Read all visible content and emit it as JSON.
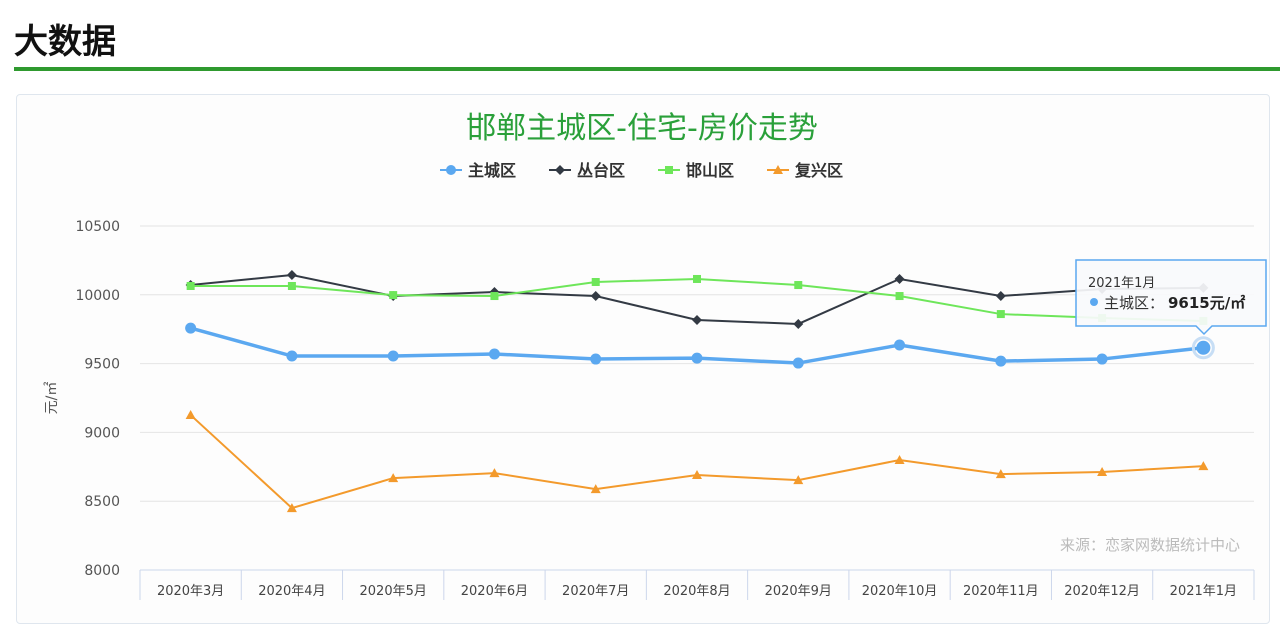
{
  "header": {
    "title": "大数据"
  },
  "source": "来源：恋家网数据统计中心",
  "tooltip": {
    "title": "2021年1月",
    "series": "主城区",
    "value": "9615元/㎡"
  },
  "chart_data": {
    "type": "line",
    "title": "邯郸主城区-住宅-房价走势",
    "ylabel": "元/㎡",
    "xlabel": "",
    "ylim": [
      8000,
      10500
    ],
    "yticks": [
      8000,
      8500,
      9000,
      9500,
      10000,
      10500
    ],
    "grid": true,
    "legend_position": "top",
    "categories": [
      "2020年3月",
      "2020年4月",
      "2020年5月",
      "2020年6月",
      "2020年7月",
      "2020年8月",
      "2020年9月",
      "2020年10月",
      "2020年11月",
      "2020年12月",
      "2021年1月"
    ],
    "series": [
      {
        "name": "主城区",
        "color": "#5ba8f0",
        "marker": "circle",
        "values": [
          9758,
          9555,
          9555,
          9570,
          9533,
          9540,
          9504,
          9635,
          9518,
          9533,
          9615
        ]
      },
      {
        "name": "丛台区",
        "color": "#333a44",
        "marker": "diamond",
        "values": [
          10071,
          10144,
          9991,
          10020,
          9991,
          9817,
          9788,
          10115,
          9991,
          10042,
          10050
        ]
      },
      {
        "name": "邯山区",
        "color": "#6ee65a",
        "marker": "square",
        "values": [
          10064,
          10064,
          9998,
          9991,
          10093,
          10115,
          10071,
          9991,
          9860,
          9831,
          9810
        ]
      },
      {
        "name": "复兴区",
        "color": "#f39a2c",
        "marker": "triangle",
        "values": [
          9126,
          8450,
          8668,
          8704,
          8588,
          8690,
          8653,
          8799,
          8697,
          8712,
          8755
        ]
      }
    ]
  }
}
